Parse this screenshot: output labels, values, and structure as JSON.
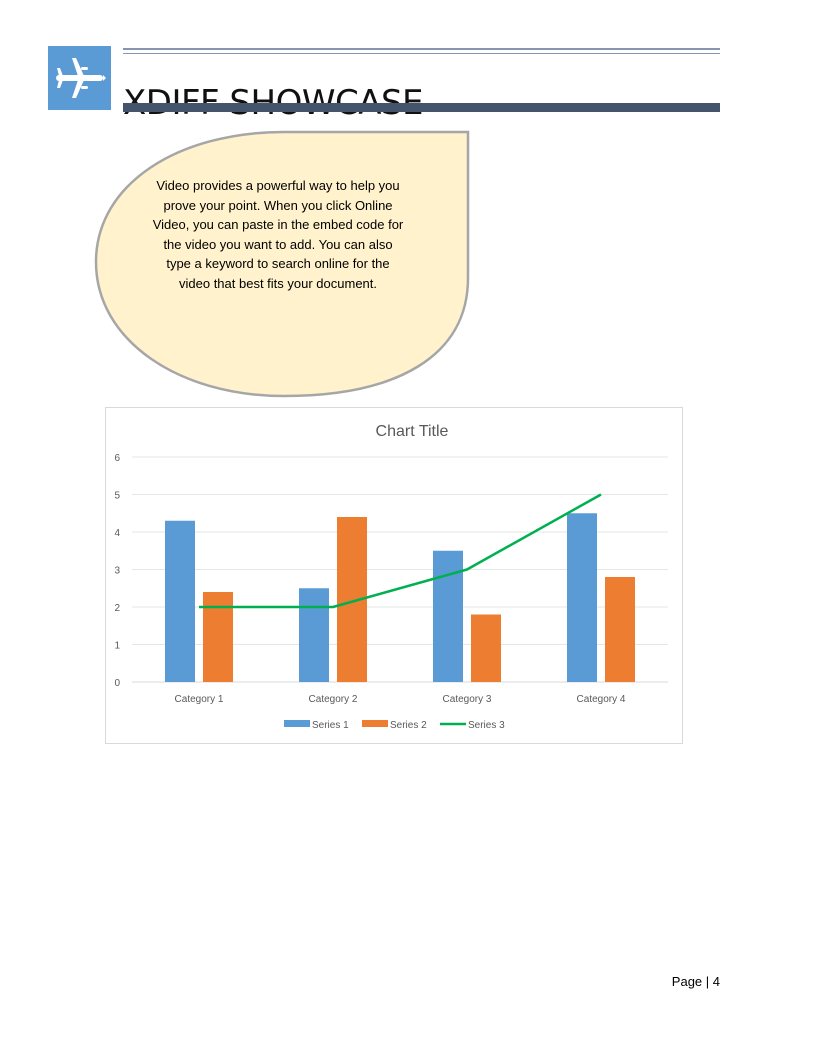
{
  "header": {
    "title": "XDIFF SHOWCASE",
    "logo_icon": "airplane-icon",
    "logo_color": "#5b9bd5",
    "bar_color": "#44546a"
  },
  "callout": {
    "text": "Video provides a powerful way to help you prove your point. When you click Online Video, you can paste in the embed code for the video you want to add. You can also type a keyword to search online for the video that best fits your document.",
    "fill": "#fff2cc",
    "border": "#a6a6a6"
  },
  "chart_data": {
    "type": "bar",
    "title": "Chart Title",
    "categories": [
      "Category 1",
      "Category 2",
      "Category 3",
      "Category 4"
    ],
    "ylim": [
      0,
      6
    ],
    "yticks": [
      "0",
      "1",
      "2",
      "3",
      "4",
      "5",
      "6"
    ],
    "grid": true,
    "legend_position": "bottom",
    "series": [
      {
        "name": "Series 1",
        "kind": "bar",
        "color": "#5b9bd5",
        "values": [
          4.3,
          2.5,
          3.5,
          4.5
        ]
      },
      {
        "name": "Series 2",
        "kind": "bar",
        "color": "#ed7d31",
        "values": [
          2.4,
          4.4,
          1.8,
          2.8
        ]
      },
      {
        "name": "Series 3",
        "kind": "line",
        "color": "#00b050",
        "values": [
          2,
          2,
          3,
          5
        ]
      }
    ]
  },
  "footer": {
    "page_label": "Page | 4"
  }
}
